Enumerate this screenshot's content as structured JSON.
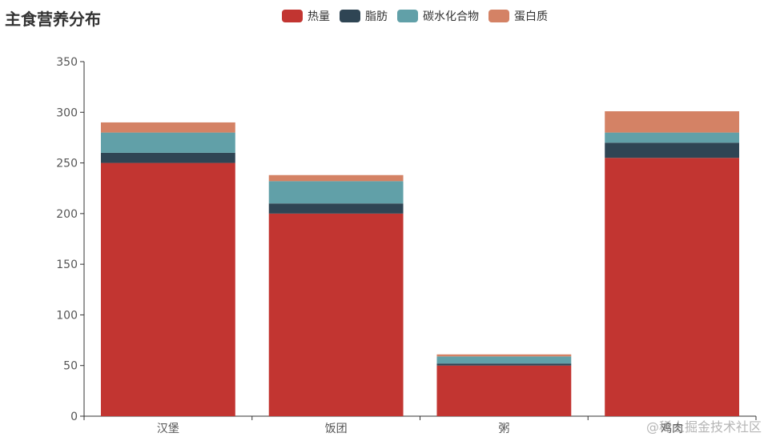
{
  "chart_data": {
    "type": "bar",
    "stacked": true,
    "title": "主食营养分布",
    "categories": [
      "汉堡",
      "饭团",
      "粥",
      "鸡肉"
    ],
    "series": [
      {
        "name": "热量",
        "color": "#c23531",
        "values": [
          250,
          200,
          50,
          255
        ]
      },
      {
        "name": "脂肪",
        "color": "#2f4554",
        "values": [
          10,
          10,
          2,
          15
        ]
      },
      {
        "name": "碳水化合物",
        "color": "#61a0a8",
        "values": [
          20,
          22,
          7,
          10
        ]
      },
      {
        "name": "蛋白质",
        "color": "#d48265",
        "values": [
          10,
          6,
          2,
          21
        ]
      }
    ],
    "ylim": [
      0,
      350
    ],
    "yticks": [
      0,
      50,
      100,
      150,
      200,
      250,
      300,
      350
    ],
    "grid": false,
    "legend_position": "top-center"
  },
  "watermark": "@稀土掘金技术社区"
}
